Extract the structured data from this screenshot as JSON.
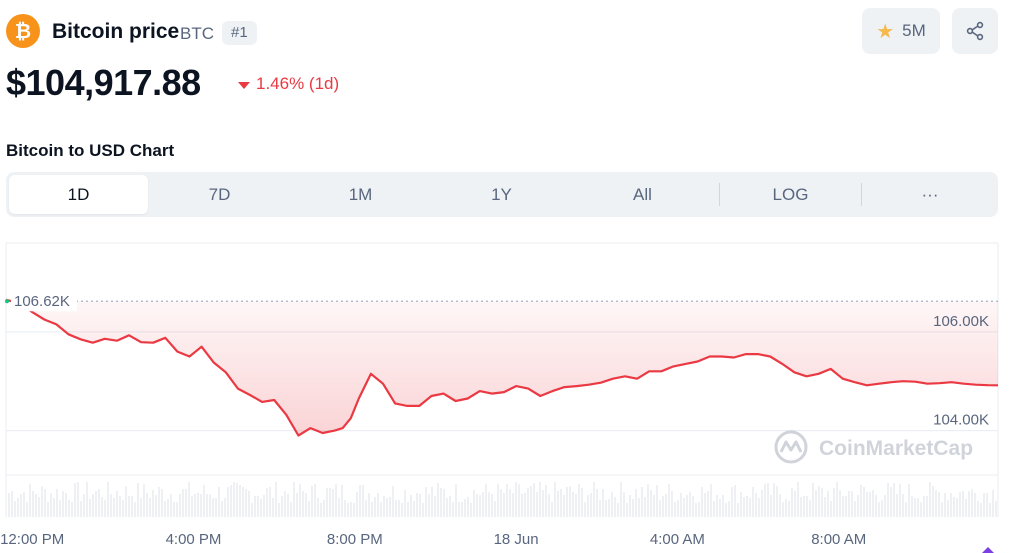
{
  "header": {
    "logo_glyph": "₿",
    "title": "Bitcoin price",
    "symbol": "BTC",
    "rank": "#1",
    "watchlist_count": "5M"
  },
  "price": {
    "value": "$104,917.88",
    "change": "1.46% (1d)"
  },
  "chart_section": {
    "heading": "Bitcoin to USD Chart"
  },
  "tabs": [
    {
      "label": "1D",
      "active": true
    },
    {
      "label": "7D",
      "active": false
    },
    {
      "label": "1M",
      "active": false
    },
    {
      "label": "1Y",
      "active": false
    },
    {
      "label": "All",
      "active": false
    },
    {
      "label": "LOG",
      "active": false
    },
    {
      "label": "···",
      "active": false
    }
  ],
  "colors": {
    "brand": "#f7931a",
    "line": "#ea3943",
    "fill": "#ea3943",
    "grid": "#e8ecf2",
    "text_muted": "#58667e"
  },
  "chart_data": {
    "type": "area",
    "title": "",
    "xlabel": "",
    "ylabel": "",
    "watermark": "CoinMarketCap",
    "ylim": [
      103100,
      107800
    ],
    "xlim": [
      -0.65,
      23.95
    ],
    "baseline_label": "106.62K",
    "baseline_value": 106620,
    "yticks": [
      {
        "value": 106000,
        "label": "106.00K"
      },
      {
        "value": 104000,
        "label": "104.00K"
      }
    ],
    "xticks": [
      {
        "value": 0,
        "label": "12:00 PM"
      },
      {
        "value": 4,
        "label": "4:00 PM"
      },
      {
        "value": 8,
        "label": "8:00 PM"
      },
      {
        "value": 12,
        "label": "18 Jun"
      },
      {
        "value": 16,
        "label": "4:00 AM"
      },
      {
        "value": 20,
        "label": "8:00 AM"
      }
    ],
    "series": [
      {
        "x": [
          -0.65,
          -0.3,
          0,
          0.3,
          0.6,
          0.9,
          1.2,
          1.5,
          1.8,
          2.1,
          2.4,
          2.7,
          3.0,
          3.3,
          3.6,
          3.9,
          4.2,
          4.5,
          4.8,
          5.1,
          5.4,
          5.7,
          6.0,
          6.3,
          6.6,
          6.9,
          7.2,
          7.5,
          7.7,
          7.9,
          8.1,
          8.4,
          8.7,
          9.0,
          9.3,
          9.6,
          9.9,
          10.2,
          10.5,
          10.8,
          11.1,
          11.4,
          11.7,
          12.0,
          12.3,
          12.6,
          12.9,
          13.2,
          13.5,
          13.8,
          14.1,
          14.4,
          14.7,
          15.0,
          15.3,
          15.6,
          15.9,
          16.2,
          16.5,
          16.8,
          17.1,
          17.4,
          17.7,
          18.0,
          18.3,
          18.6,
          18.9,
          19.2,
          19.5,
          19.8,
          20.1,
          20.4,
          20.7,
          21.0,
          21.3,
          21.6,
          21.9,
          22.2,
          22.5,
          22.8,
          23.1,
          23.4,
          23.7,
          23.95
        ],
        "y": [
          106650,
          106580,
          106400,
          106250,
          106150,
          105950,
          105850,
          105780,
          105860,
          105820,
          105930,
          105790,
          105780,
          105880,
          105600,
          105500,
          105700,
          105380,
          105180,
          104850,
          104720,
          104580,
          104620,
          104320,
          103900,
          104050,
          103950,
          104000,
          104050,
          104250,
          104650,
          105150,
          104950,
          104550,
          104500,
          104500,
          104700,
          104750,
          104600,
          104650,
          104800,
          104750,
          104780,
          104900,
          104850,
          104700,
          104800,
          104880,
          104900,
          104930,
          104970,
          105050,
          105100,
          105050,
          105200,
          105200,
          105300,
          105350,
          105400,
          105500,
          105500,
          105480,
          105550,
          105550,
          105500,
          105350,
          105180,
          105100,
          105150,
          105250,
          105050,
          104980,
          104917.88,
          104950,
          104980,
          105000,
          104990,
          104950,
          104960,
          104980,
          104950,
          104930,
          104920,
          104917.88
        ]
      }
    ]
  }
}
